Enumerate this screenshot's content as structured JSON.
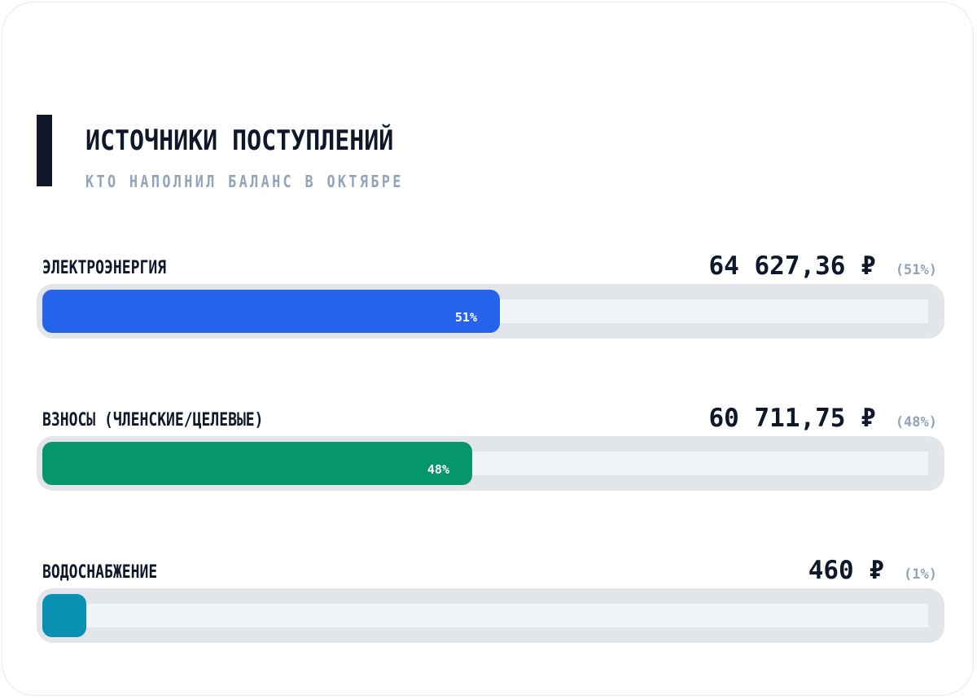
{
  "header": {
    "title": "ИСТОЧНИКИ ПОСТУПЛЕНИЙ",
    "subtitle": "КТО НАПОЛНИЛ БАЛАНС В ОКТЯБРЕ"
  },
  "chart_data": {
    "type": "bar",
    "orientation": "horizontal",
    "title": "ИСТОЧНИКИ ПОСТУПЛЕНИЙ",
    "subtitle": "КТО НАПОЛНИЛ БАЛАНС В ОКТЯБРЕ",
    "categories": [
      "ЭЛЕКТРОЭНЕРГИЯ",
      "ВЗНОСЫ (ЧЛЕНСКИЕ/ЦЕЛЕВЫЕ)",
      "ВОДОСНАБЖЕНИЕ"
    ],
    "values": [
      64627.36,
      60711.75,
      460
    ],
    "percents": [
      51,
      48,
      1
    ],
    "amount_labels": [
      "64 627,36 ₽",
      "60 711,75 ₽",
      "460 ₽"
    ],
    "percent_labels": [
      "(51%)",
      "(48%)",
      "(1%)"
    ],
    "bar_labels": [
      "51%",
      "48%",
      ""
    ],
    "colors": [
      "#2563eb",
      "#059669",
      "#0891b2"
    ]
  }
}
